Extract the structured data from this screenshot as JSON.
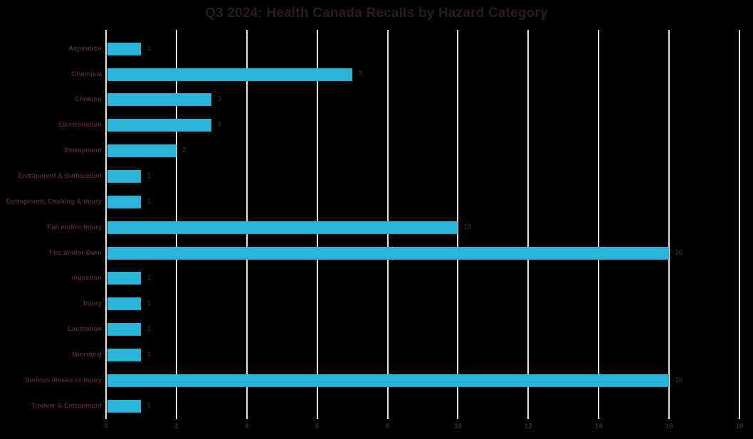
{
  "chart_data": {
    "type": "bar",
    "orientation": "horizontal",
    "title": "Q3 2024: Health Canada Recalls by Hazard Category",
    "categories": [
      "Aspiration",
      "Chemical",
      "Choking",
      "Electrocution",
      "Entrapment",
      "Entrapment & Suffocation",
      "Entrapment, Choking & Injury",
      "Fall and/or Injury",
      "Fire and/or Burn",
      "Ingestion",
      "Injury",
      "Laceration",
      "Microbial",
      "Serious Illness or Injury",
      "Tipover & Entrapment"
    ],
    "values": [
      1,
      7,
      3,
      3,
      2,
      1,
      1,
      10,
      16,
      1,
      1,
      1,
      1,
      16,
      1
    ],
    "data_labels": [
      1,
      7,
      3,
      3,
      2,
      1,
      1,
      10,
      16,
      1,
      1,
      1,
      1,
      16,
      1
    ],
    "x_ticks": [
      0,
      2,
      4,
      6,
      8,
      10,
      12,
      14,
      16,
      18
    ],
    "xlim": [
      0,
      18
    ],
    "xlabel": "",
    "ylabel": "",
    "grid": "vertical",
    "legend": "none",
    "colors": {
      "background": "#000000",
      "bar": "#29B5D8",
      "bar_edge": "#1FA3C4",
      "gridline": "#EDDEE2",
      "title_text": "#2B1B23",
      "category_text": "#53252E",
      "value_text": "#322127",
      "tick_text": "#382B30"
    }
  }
}
